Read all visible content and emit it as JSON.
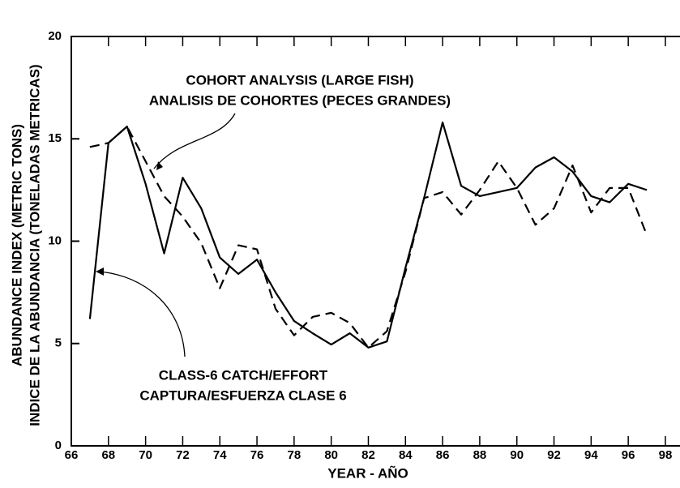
{
  "chart_data": {
    "type": "line",
    "xlabel": "YEAR - AÑO",
    "ylabel": [
      "ABUNDANCE INDEX  (METRIC TONS)",
      "INDICE DE LA ABUNDANCIA  (TONELADAS METRICAS)"
    ],
    "annotations": [
      [
        "COHORT ANALYSIS  (LARGE FISH)",
        "ANALISIS DE COHORTES  (PECES GRANDES)"
      ],
      [
        "CLASS-6 CATCH/EFFORT",
        "CAPTURA/ESFUERZA CLASE 6"
      ]
    ],
    "x": [
      67,
      68,
      69,
      70,
      71,
      72,
      73,
      74,
      75,
      76,
      77,
      78,
      79,
      80,
      81,
      82,
      83,
      84,
      85,
      86,
      87,
      88,
      89,
      90,
      91,
      92,
      93,
      94,
      95,
      96,
      97
    ],
    "series": [
      {
        "color": "#000000",
        "dashed": false,
        "values": [
          6.2,
          14.8,
          15.6,
          12.8,
          9.4,
          13.1,
          11.6,
          9.2,
          8.4,
          9.1,
          7.5,
          6.1,
          5.5,
          4.95,
          5.5,
          4.8,
          5.1,
          8.7,
          12.1,
          15.8,
          12.7,
          12.2,
          12.4,
          12.6,
          13.6,
          14.1,
          13.4,
          12.2,
          11.9,
          12.8,
          12.5
        ]
      },
      {
        "color": "#000000",
        "dashed": true,
        "values": [
          14.6,
          14.8,
          15.6,
          13.9,
          12.2,
          11.2,
          9.9,
          7.7,
          9.8,
          9.6,
          6.7,
          5.4,
          6.3,
          6.5,
          6.0,
          4.8,
          5.6,
          8.5,
          12.1,
          12.4,
          11.3,
          12.5,
          13.9,
          12.6,
          10.8,
          11.6,
          13.7,
          11.4,
          12.6,
          12.6,
          10.3
        ]
      }
    ],
    "xlim": [
      66,
      98.7
    ],
    "xticks": [
      66,
      68,
      70,
      72,
      74,
      76,
      78,
      80,
      82,
      84,
      86,
      88,
      90,
      92,
      94,
      96,
      98
    ],
    "ylim": [
      0,
      20
    ],
    "yticks": [
      0,
      5,
      10,
      15,
      20
    ],
    "grid": false
  }
}
